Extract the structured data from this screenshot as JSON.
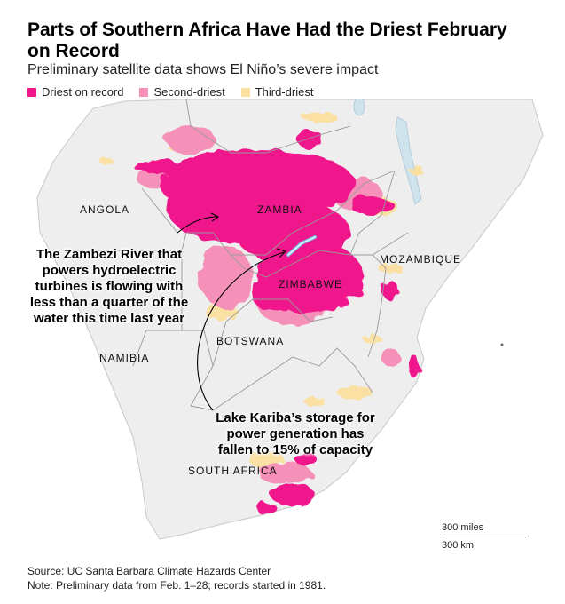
{
  "title": "Parts of Southern Africa Have Had the Driest February on Record",
  "subtitle": "Preliminary satellite data shows El Niño’s severe impact",
  "legend": [
    {
      "label": "Driest on record",
      "color": "#f0188c"
    },
    {
      "label": "Second-driest",
      "color": "#f590b8"
    },
    {
      "label": "Third-driest",
      "color": "#fbe0a0"
    }
  ],
  "countries": {
    "angola": "ANGOLA",
    "zambia": "ZAMBIA",
    "mozambique": "MOZAMBIQUE",
    "zimbabwe": "ZIMBABWE",
    "botswana": "BOTSWANA",
    "namibia": "NAMIBIA",
    "south_africa": "SOUTH AFRICA"
  },
  "annotations": {
    "zambezi": "The Zambezi River that powers hydroelectric turbines is flowing with less than a quarter of the water this time last year",
    "kariba": "Lake Kariba’s storage for power generation has fallen to 15% of capacity"
  },
  "scale": {
    "miles": "300 miles",
    "km": "300 km"
  },
  "footer": {
    "source": "Source: UC Santa Barbara Climate Hazards Center",
    "note": "Note: Preliminary data from Feb. 1–28; records started in 1981."
  }
}
